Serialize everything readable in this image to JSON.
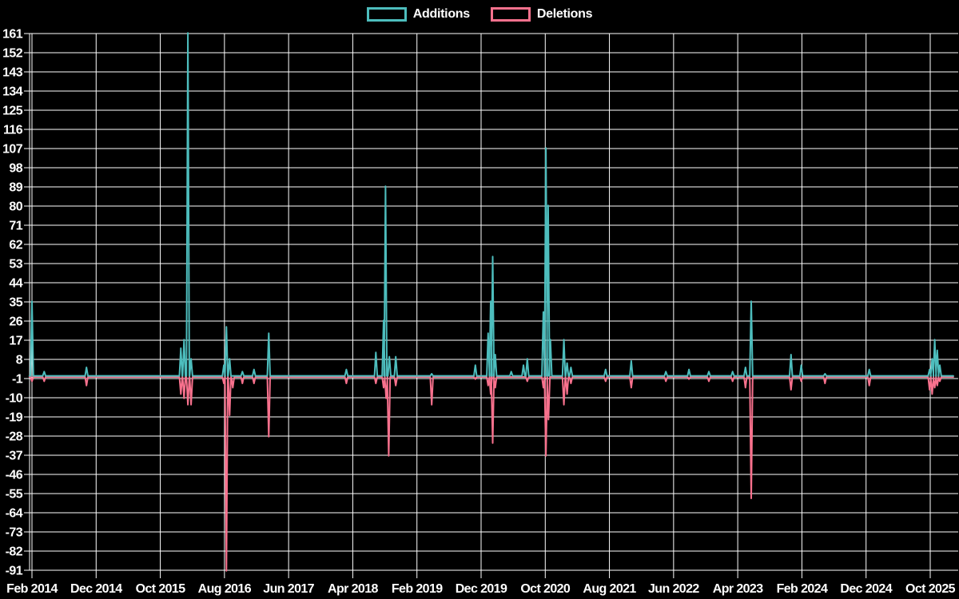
{
  "chart_data": {
    "type": "line",
    "title": "",
    "background": "#000000",
    "grid": true,
    "grid_color": "#ffffff",
    "text_color": "#ffffff",
    "legend_position": "top",
    "x_axis": {
      "tick_labels": [
        "Feb 2014",
        "Dec 2014",
        "Oct 2015",
        "Aug 2016",
        "Jun 2017",
        "Apr 2018",
        "Feb 2019",
        "Dec 2019",
        "Oct 2020",
        "Aug 2021",
        "Jun 2022",
        "Apr 2023",
        "Feb 2024",
        "Dec 2024",
        "Oct 2025"
      ],
      "months_per_label": 10,
      "domain_months": [
        -0.4,
        143.6
      ]
    },
    "y_axis": {
      "range": [
        -91,
        161
      ],
      "step": 9,
      "ticks": [
        161,
        152,
        143,
        134,
        125,
        116,
        107,
        98,
        89,
        80,
        71,
        62,
        53,
        44,
        35,
        26,
        17,
        8,
        -1,
        -10,
        -19,
        -28,
        -37,
        -46,
        -55,
        -64,
        -73,
        -82,
        -91
      ]
    },
    "baseline_value": 0,
    "spike_halfwidth_months": 0.22,
    "series": [
      {
        "name": "Additions",
        "color": "#4dbdbd",
        "points": [
          [
            0,
            35
          ],
          [
            1.9,
            2
          ],
          [
            8.5,
            4
          ],
          [
            23.2,
            13
          ],
          [
            23.7,
            17
          ],
          [
            24.3,
            161
          ],
          [
            24.8,
            8
          ],
          [
            29.9,
            5
          ],
          [
            30.3,
            23
          ],
          [
            30.8,
            8
          ],
          [
            32.8,
            2
          ],
          [
            34.6,
            3
          ],
          [
            36.9,
            20
          ],
          [
            49,
            3
          ],
          [
            53.6,
            11
          ],
          [
            54.8,
            26
          ],
          [
            55.1,
            89
          ],
          [
            55.7,
            9
          ],
          [
            56.7,
            9
          ],
          [
            62.3,
            1
          ],
          [
            69.1,
            5
          ],
          [
            71.1,
            20
          ],
          [
            71.5,
            35
          ],
          [
            71.8,
            56
          ],
          [
            72.2,
            10
          ],
          [
            74.7,
            2
          ],
          [
            76.6,
            5
          ],
          [
            77.2,
            8
          ],
          [
            79.7,
            30
          ],
          [
            80.1,
            107
          ],
          [
            80.45,
            80
          ],
          [
            80.8,
            17
          ],
          [
            82.9,
            17
          ],
          [
            83.4,
            6
          ],
          [
            84,
            4
          ],
          [
            89.4,
            3
          ],
          [
            93.4,
            7
          ],
          [
            98.8,
            2
          ],
          [
            102.4,
            3
          ],
          [
            105.5,
            2
          ],
          [
            109.2,
            2
          ],
          [
            111.2,
            4
          ],
          [
            112.1,
            35
          ],
          [
            118.3,
            10
          ],
          [
            119.9,
            5
          ],
          [
            123.6,
            1
          ],
          [
            130.5,
            3
          ],
          [
            139.9,
            3
          ],
          [
            140.3,
            8
          ],
          [
            140.7,
            17
          ],
          [
            141.1,
            12
          ],
          [
            141.5,
            5
          ]
        ]
      },
      {
        "name": "Deletions",
        "color": "#f8718d",
        "points": [
          [
            0,
            -2
          ],
          [
            1.9,
            -2
          ],
          [
            8.5,
            -4
          ],
          [
            23.2,
            -8
          ],
          [
            23.7,
            -10
          ],
          [
            24.3,
            -13
          ],
          [
            24.8,
            -13
          ],
          [
            29.9,
            -3
          ],
          [
            30.3,
            -91
          ],
          [
            30.8,
            -18
          ],
          [
            31.3,
            -5
          ],
          [
            32.8,
            -3
          ],
          [
            34.6,
            -3
          ],
          [
            36.9,
            -28
          ],
          [
            49,
            -3
          ],
          [
            53.6,
            -3
          ],
          [
            54.8,
            -5
          ],
          [
            55.2,
            -10
          ],
          [
            55.6,
            -37
          ],
          [
            56.7,
            -4
          ],
          [
            62.3,
            -13
          ],
          [
            69.1,
            -1
          ],
          [
            71.1,
            -4
          ],
          [
            71.5,
            -8
          ],
          [
            71.8,
            -31
          ],
          [
            72.2,
            -5
          ],
          [
            77.2,
            -2
          ],
          [
            79.7,
            -5
          ],
          [
            80.1,
            -37
          ],
          [
            80.5,
            -20
          ],
          [
            82.9,
            -13
          ],
          [
            83.4,
            -8
          ],
          [
            84,
            -3
          ],
          [
            89.4,
            -2
          ],
          [
            93.4,
            -5
          ],
          [
            98.8,
            -2
          ],
          [
            102.4,
            -1
          ],
          [
            105.5,
            -2
          ],
          [
            109.2,
            -2
          ],
          [
            111.2,
            -5
          ],
          [
            112.1,
            -57
          ],
          [
            118.3,
            -6
          ],
          [
            119.9,
            -2
          ],
          [
            123.6,
            -3
          ],
          [
            130.5,
            -4
          ],
          [
            139.9,
            -6
          ],
          [
            140.3,
            -8
          ],
          [
            140.7,
            -5
          ],
          [
            141.1,
            -4
          ],
          [
            141.5,
            -2
          ]
        ]
      }
    ]
  }
}
